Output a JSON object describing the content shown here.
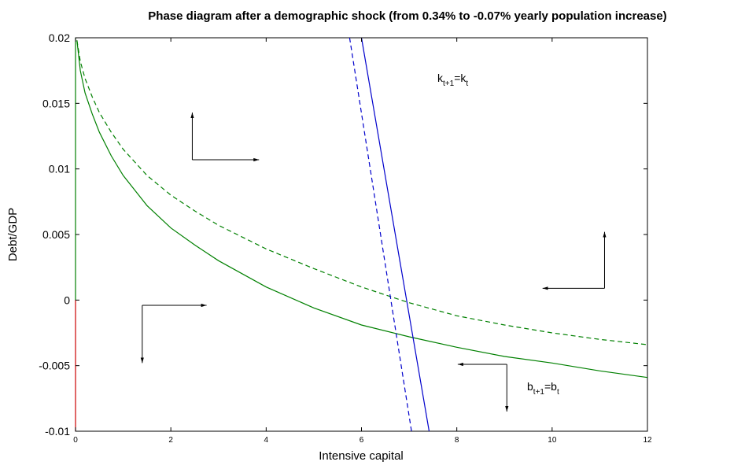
{
  "chart_data": {
    "type": "line",
    "title": "Phase diagram after a demographic shock (from 0.34% to -0.07% yearly population increase)",
    "xlabel": "Intensive capital",
    "ylabel": "Debt/GDP",
    "xlim": [
      0,
      12
    ],
    "ylim": [
      -0.01,
      0.02
    ],
    "xticks": [
      0,
      2,
      4,
      6,
      8,
      10,
      12
    ],
    "yticks": [
      0.02,
      0.015,
      0.01,
      0.005,
      0,
      -0.005,
      -0.01
    ],
    "ytick_labels": [
      "0.02",
      "0.015",
      "0.01",
      "0.005",
      "0",
      "-0.005",
      "-0.01"
    ],
    "grid": false,
    "series": [
      {
        "style": "solid",
        "color": "#008000",
        "x": [
          0.03,
          0.1,
          0.2,
          0.35,
          0.5,
          0.75,
          1,
          1.5,
          2,
          2.5,
          3,
          4,
          5,
          6,
          7,
          8,
          9,
          10,
          11,
          12
        ],
        "y": [
          0.0198,
          0.0175,
          0.0158,
          0.0142,
          0.0128,
          0.011,
          0.0095,
          0.0072,
          0.0055,
          0.0042,
          0.003,
          0.001,
          -0.0006,
          -0.0019,
          -0.0028,
          -0.0036,
          -0.0043,
          -0.0048,
          -0.0054,
          -0.0059
        ]
      },
      {
        "style": "dashed",
        "color": "#008000",
        "x": [
          0.03,
          0.1,
          0.2,
          0.35,
          0.5,
          0.75,
          1,
          1.5,
          2,
          2.5,
          3,
          4,
          5,
          6,
          7,
          8,
          9,
          10,
          11,
          12
        ],
        "y": [
          0.0198,
          0.0182,
          0.0169,
          0.0155,
          0.0143,
          0.0128,
          0.0115,
          0.0095,
          0.008,
          0.0068,
          0.0057,
          0.0039,
          0.0024,
          0.001,
          -0.0002,
          -0.0012,
          -0.0019,
          -0.0025,
          -0.003,
          -0.0034
        ]
      },
      {
        "style": "solid",
        "color": "#0000cc",
        "x": [
          6.0,
          7.42
        ],
        "y": [
          0.02,
          -0.01
        ]
      },
      {
        "style": "dashed",
        "color": "#0000cc",
        "x": [
          5.75,
          7.05
        ],
        "y": [
          0.02,
          -0.01
        ]
      },
      {
        "style": "solid",
        "color": "#008000",
        "x": [
          0.0,
          0.0
        ],
        "y": [
          0.0,
          0.02
        ]
      },
      {
        "style": "solid",
        "color": "#cc0000",
        "x": [
          0.0,
          0.0
        ],
        "y": [
          -0.01,
          0.0
        ]
      }
    ],
    "annotations": [
      {
        "base": "k",
        "sub": "t+1",
        "mid": "=k",
        "sub2": "t"
      },
      {
        "base": "b",
        "sub": "t+1",
        "mid": "=b",
        "sub2": "t"
      }
    ],
    "phase_arrows": [
      {
        "corner": [
          2.45,
          0.0107
        ],
        "h_to": [
          3.85,
          0.0107
        ],
        "v_to": [
          2.45,
          0.0143
        ]
      },
      {
        "corner": [
          1.4,
          -0.0004
        ],
        "h_to": [
          2.75,
          -0.0004
        ],
        "v_to": [
          1.4,
          -0.0048
        ]
      },
      {
        "corner": [
          11.1,
          0.0009
        ],
        "h_to": [
          9.8,
          0.0009
        ],
        "v_to": [
          11.1,
          0.0052
        ]
      },
      {
        "corner": [
          9.05,
          -0.0049
        ],
        "h_to": [
          8.02,
          -0.0049
        ],
        "v_to": [
          9.05,
          -0.0085
        ]
      }
    ]
  }
}
